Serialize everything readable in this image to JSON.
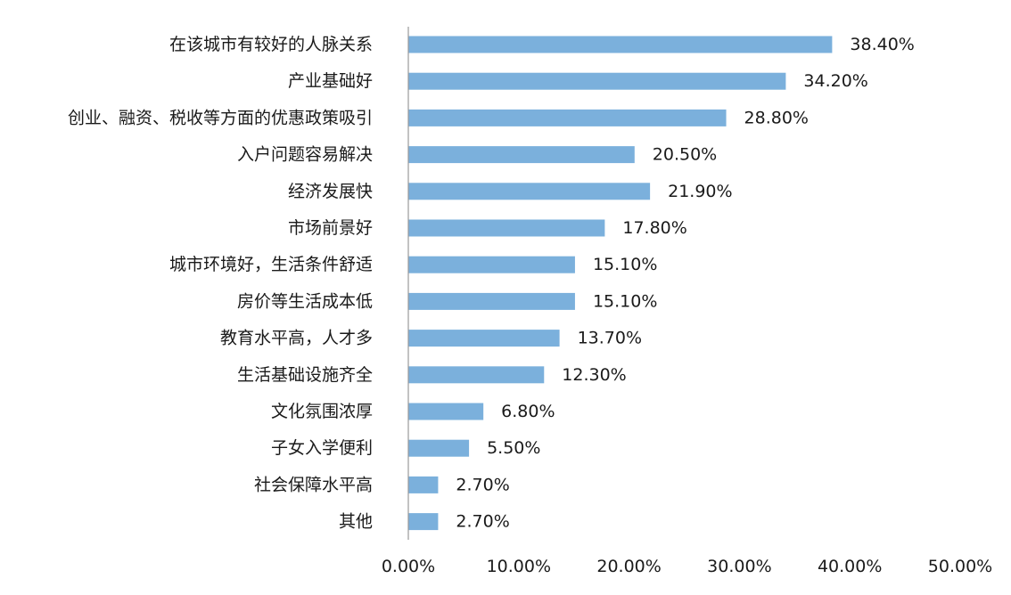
{
  "chart_data": {
    "type": "bar",
    "orientation": "horizontal",
    "categories": [
      "在该城市有较好的人脉关系",
      "产业基础好",
      "创业、融资、税收等方面的优惠政策吸引",
      "入户问题容易解决",
      "经济发展快",
      "市场前景好",
      "城市环境好，生活条件舒适",
      "房价等生活成本低",
      "教育水平高，人才多",
      "生活基础设施齐全",
      "文化氛围浓厚",
      "子女入学便利",
      "社会保障水平高",
      "其他"
    ],
    "values": [
      38.4,
      34.2,
      28.8,
      20.5,
      21.9,
      17.8,
      15.1,
      15.1,
      13.7,
      12.3,
      6.8,
      5.5,
      2.7,
      2.7
    ],
    "value_labels": [
      "38.40%",
      "34.20%",
      "28.80%",
      "20.50%",
      "21.90%",
      "17.80%",
      "15.10%",
      "15.10%",
      "13.70%",
      "12.30%",
      "6.80%",
      "5.50%",
      "2.70%",
      "2.70%"
    ],
    "xlim": [
      0,
      50
    ],
    "xticks": [
      0,
      10,
      20,
      30,
      40,
      50
    ],
    "xtick_labels": [
      "0.00%",
      "10.00%",
      "20.00%",
      "30.00%",
      "40.00%",
      "50.00%"
    ],
    "title": "",
    "xlabel": "",
    "ylabel": "",
    "grid": false,
    "legend": "none",
    "bar_color": "#7bb0dc"
  }
}
